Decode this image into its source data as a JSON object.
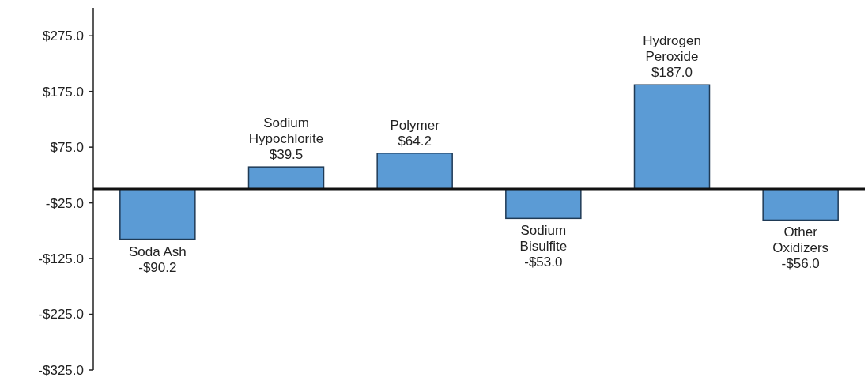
{
  "chart_data": {
    "type": "bar",
    "categories": [
      "Soda Ash",
      "Sodium Hypochlorite",
      "Polymer",
      "Sodium Bisulfite",
      "Hydrogen Peroxide",
      "Other Oxidizers"
    ],
    "values": [
      -90.2,
      39.5,
      64.2,
      -53.0,
      187.0,
      -56.0
    ],
    "value_labels": [
      "-$90.2",
      "$39.5",
      "$64.2",
      "-$53.0",
      "$187.0",
      "-$56.0"
    ],
    "color": "#5b9bd5",
    "ylim": [
      -325,
      325
    ],
    "yticks": [
      {
        "value": -325,
        "label": "-$325.0"
      },
      {
        "value": -225,
        "label": "-$225.0"
      },
      {
        "value": -125,
        "label": "-$125.0"
      },
      {
        "value": -25,
        "label": "-$25.0"
      },
      {
        "value": 75,
        "label": "$75.0"
      },
      {
        "value": 175,
        "label": "$175.0"
      },
      {
        "value": 275,
        "label": "$275.0"
      }
    ],
    "grid": false
  }
}
